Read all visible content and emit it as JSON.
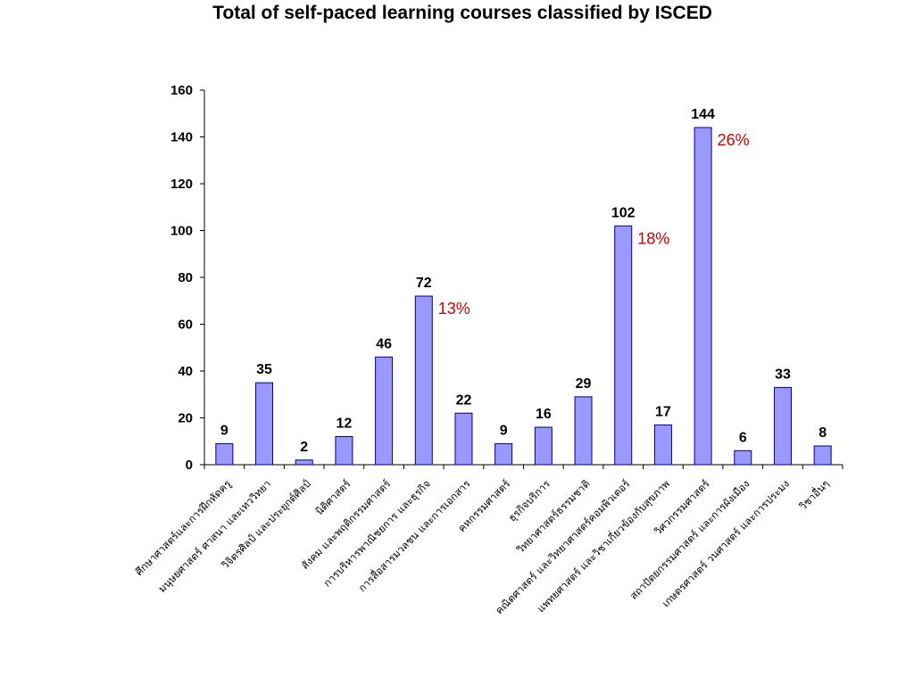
{
  "chart_data": {
    "type": "bar",
    "title": "Total of self-paced learning courses classified by ISCED",
    "xlabel": "",
    "ylabel": "",
    "ylim": [
      0,
      160
    ],
    "yticks": [
      0,
      20,
      40,
      60,
      80,
      100,
      120,
      140,
      160
    ],
    "categories": [
      "ศึกษาศาสตร์และการฝึกหัดครู",
      "มนุษยศาสตร์ ศาสนา และเทววิทยา",
      "วิจิตรศิลป์ และประยุกต์ศิลป์",
      "นิติศาสตร์",
      "สังคม และพฤติกรรมศาสตร์",
      "การบริหารพาณิชยการ และธุรกิจ",
      "การสื่อสารมวลชน และการเอกสาร",
      "คหกรรมศาสตร์",
      "ธุรกิจบริการ",
      "วิทยาศาสตร์ธรรมชาติ",
      "คณิตศาสตร์ และวิทยาศาสตร์คอมพิวเตอร์",
      "แพทยศาสตร์ และวิชาเกี่ยวข้องกับสุขภาพ",
      "วิศวกรรมศาสตร์",
      "สถาปัตยกรรมศาสตร์ และการผังเมือง",
      "เกษตรศาสตร์ วนศาสตร์ และการประมง",
      "วิชาอื่นๆ"
    ],
    "values": [
      9,
      35,
      2,
      12,
      46,
      72,
      22,
      9,
      16,
      29,
      102,
      17,
      144,
      6,
      33,
      8
    ],
    "annotations": [
      {
        "index": 5,
        "text": "13%"
      },
      {
        "index": 10,
        "text": "18%"
      },
      {
        "index": 12,
        "text": "26%"
      }
    ],
    "bar_color": "#9999ff",
    "bar_border_color": "#000080",
    "annotation_color": "#cc0000",
    "grid": false,
    "legend": "none"
  }
}
